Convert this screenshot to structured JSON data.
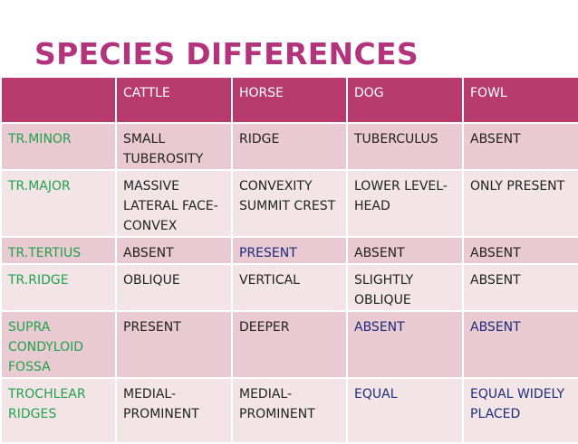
{
  "title": "SPECIES DIFFERENCES",
  "table": {
    "header": [
      "CATTLE",
      "HORSE",
      "DOG",
      "FOWL"
    ],
    "rows": [
      [
        "TR.MINOR",
        "SMALL TUBEROSITY",
        "RIDGE",
        "TUBERCULUS",
        "ABSENT"
      ],
      [
        "TR.MAJOR",
        "MASSIVE LATERAL FACE-CONVEX",
        "CONVEXITY SUMMIT CREST",
        "LOWER LEVEL-HEAD",
        "ONLY PRESENT"
      ],
      [
        "TR.TERTIUS",
        "ABSENT",
        "PRESENT",
        "ABSENT",
        "ABSENT"
      ],
      [
        "TR.RIDGE",
        "OBLIQUE",
        "VERTICAL",
        "SLIGHTLY OBLIQUE",
        "ABSENT"
      ],
      [
        "SUPRA CONDYLOID FOSSA",
        "PRESENT",
        "DEEPER",
        "ABSENT",
        "ABSENT"
      ],
      [
        "TROCHLEAR RIDGES",
        "MEDIAL-PROMINENT",
        "MEDIAL-PROMINENT",
        "EQUAL",
        "EQUAL WIDELY PLACED"
      ]
    ]
  }
}
